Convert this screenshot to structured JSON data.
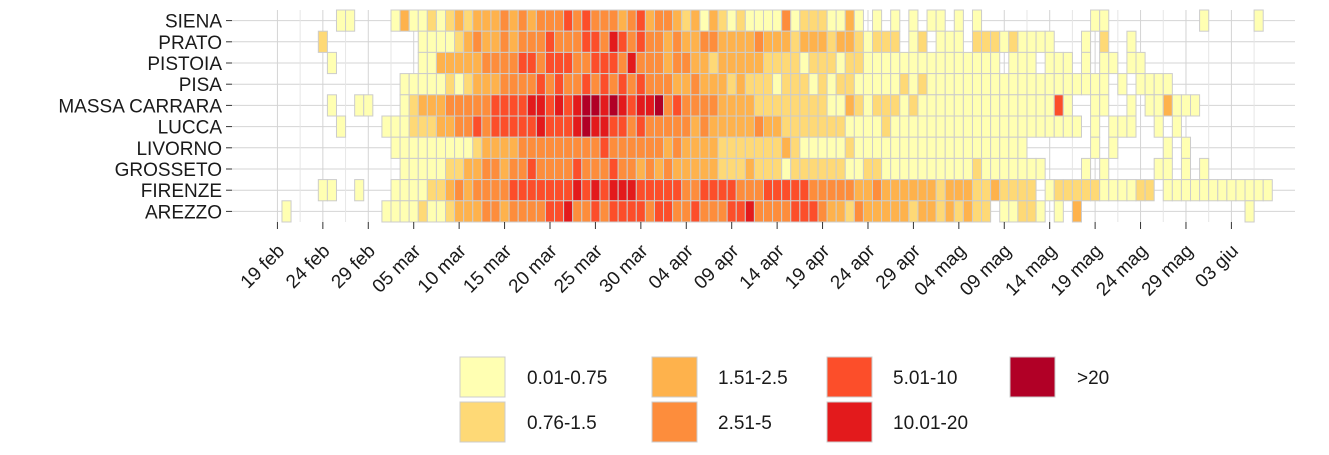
{
  "chart_data": {
    "type": "heatmap",
    "x": [
      6,
      7,
      8,
      9,
      10,
      11,
      12,
      13,
      14,
      15,
      16,
      17,
      18,
      19,
      20,
      21,
      22,
      23,
      24,
      25,
      26,
      27,
      28,
      29,
      30,
      31,
      32,
      33,
      34,
      35,
      36,
      37,
      38,
      39,
      40,
      41,
      42,
      43,
      44,
      45,
      46,
      47,
      48,
      49,
      50,
      51,
      52,
      53,
      54,
      55,
      56,
      57,
      58,
      59,
      60,
      61,
      62,
      63,
      64,
      65,
      66,
      67,
      68,
      69,
      70,
      71,
      72,
      73,
      74,
      75,
      76,
      77,
      78,
      79,
      80,
      81,
      82,
      83,
      84,
      85,
      86,
      87,
      88,
      89,
      90,
      91,
      92,
      93,
      94,
      95,
      96,
      97,
      98,
      99,
      100,
      101,
      102,
      103,
      104,
      105,
      106,
      107,
      108,
      109,
      110,
      111,
      112,
      113,
      114
    ],
    "xlim": [
      0,
      117
    ],
    "xticks": [
      {
        "value": 5,
        "label": "19 feb"
      },
      {
        "value": 10,
        "label": "24 feb"
      },
      {
        "value": 15,
        "label": "29 feb"
      },
      {
        "value": 20,
        "label": "05 mar"
      },
      {
        "value": 25,
        "label": "10 mar"
      },
      {
        "value": 30,
        "label": "15 mar"
      },
      {
        "value": 35,
        "label": "20 mar"
      },
      {
        "value": 40,
        "label": "25 mar"
      },
      {
        "value": 45,
        "label": "30 mar"
      },
      {
        "value": 50,
        "label": "04 apr"
      },
      {
        "value": 55,
        "label": "09 apr"
      },
      {
        "value": 60,
        "label": "14 apr"
      },
      {
        "value": 65,
        "label": "19 apr"
      },
      {
        "value": 70,
        "label": "24 apr"
      },
      {
        "value": 75,
        "label": "29 apr"
      },
      {
        "value": 80,
        "label": "04 mag"
      },
      {
        "value": 85,
        "label": "09 mag"
      },
      {
        "value": 90,
        "label": "14 mag"
      },
      {
        "value": 95,
        "label": "19 mag"
      },
      {
        "value": 100,
        "label": "24 mag"
      },
      {
        "value": 105,
        "label": "29 mag"
      },
      {
        "value": 110,
        "label": "03 giu"
      }
    ],
    "grid": true,
    "classes": [
      {
        "label": "0.01-0.75",
        "color": "#FFFFB2"
      },
      {
        "label": "0.76-1.5",
        "color": "#FED976"
      },
      {
        "label": "1.51-2.5",
        "color": "#FEB24C"
      },
      {
        "label": "2.51-5",
        "color": "#FD8D3C"
      },
      {
        "label": "5.01-10",
        "color": "#FC4E2A"
      },
      {
        "label": "10.01-20",
        "color": "#E31A1C"
      },
      {
        "label": ">20",
        "color": "#B10026"
      }
    ],
    "series": [
      {
        "name": "SIENA",
        "values": [
          null,
          null,
          null,
          null,
          null,
          null,
          0,
          0,
          null,
          null,
          null,
          null,
          0,
          2,
          0,
          0,
          1,
          0,
          1,
          2,
          1,
          2,
          2,
          2,
          3,
          2,
          3,
          2,
          3,
          3,
          3,
          4,
          3,
          4,
          3,
          3,
          3,
          2,
          3,
          4,
          2,
          3,
          3,
          2,
          1,
          2,
          0,
          2,
          1,
          0,
          1,
          0,
          0,
          0,
          0,
          3,
          0,
          1,
          1,
          1,
          0,
          0,
          2,
          0,
          null,
          0,
          null,
          0,
          null,
          0,
          null,
          0,
          0,
          null,
          0,
          null,
          0,
          null,
          null,
          null,
          null,
          null,
          null,
          null,
          null,
          null,
          null,
          null,
          null,
          0,
          0,
          null,
          null,
          null,
          null,
          null,
          null,
          null,
          null,
          null,
          null,
          0,
          null,
          null,
          null,
          null,
          null,
          0,
          null
        ]
      },
      {
        "name": "PRATO",
        "values": [
          null,
          null,
          null,
          null,
          1,
          null,
          null,
          null,
          null,
          null,
          null,
          null,
          null,
          null,
          null,
          0,
          0,
          0,
          0,
          1,
          2,
          3,
          2,
          2,
          3,
          2,
          3,
          3,
          3,
          4,
          3,
          3,
          3,
          4,
          4,
          3,
          5,
          4,
          3,
          4,
          3,
          3,
          2,
          3,
          2,
          2,
          3,
          3,
          2,
          2,
          2,
          2,
          3,
          2,
          2,
          2,
          1,
          2,
          2,
          2,
          1,
          2,
          2,
          1,
          0,
          1,
          1,
          1,
          null,
          0,
          1,
          null,
          0,
          0,
          0,
          null,
          1,
          1,
          1,
          0,
          1,
          0,
          0,
          0,
          0,
          null,
          null,
          null,
          0,
          null,
          1,
          null,
          null,
          0,
          null,
          null,
          null,
          null,
          null,
          null,
          null,
          null,
          null,
          null,
          null,
          null,
          null,
          null,
          null
        ]
      },
      {
        "name": "PISTOIA",
        "values": [
          null,
          null,
          null,
          null,
          null,
          0,
          null,
          null,
          null,
          null,
          null,
          null,
          null,
          null,
          null,
          0,
          0,
          2,
          2,
          2,
          2,
          2,
          3,
          3,
          3,
          3,
          4,
          4,
          3,
          4,
          4,
          4,
          3,
          3,
          4,
          4,
          4,
          3,
          5,
          3,
          3,
          3,
          2,
          3,
          3,
          2,
          2,
          1,
          2,
          2,
          2,
          2,
          2,
          1,
          1,
          1,
          1,
          0,
          1,
          1,
          1,
          0,
          1,
          1,
          0,
          0,
          0,
          0,
          0,
          0,
          0,
          0,
          0,
          0,
          0,
          0,
          0,
          0,
          0,
          null,
          0,
          0,
          0,
          null,
          0,
          0,
          0,
          null,
          0,
          null,
          0,
          0,
          null,
          0,
          0,
          null,
          null,
          null,
          null,
          null,
          null,
          null,
          null,
          null,
          null,
          null,
          null,
          null,
          null
        ]
      },
      {
        "name": "PISA",
        "values": [
          null,
          null,
          null,
          null,
          null,
          null,
          null,
          null,
          null,
          null,
          null,
          null,
          null,
          0,
          0,
          0,
          0,
          0,
          1,
          0,
          1,
          2,
          2,
          2,
          3,
          3,
          3,
          3,
          4,
          3,
          4,
          3,
          3,
          4,
          3,
          4,
          3,
          4,
          3,
          4,
          3,
          3,
          3,
          2,
          2,
          3,
          2,
          2,
          2,
          1,
          2,
          1,
          1,
          1,
          0,
          1,
          1,
          1,
          0,
          1,
          0,
          1,
          1,
          0,
          0,
          0,
          0,
          0,
          1,
          0,
          1,
          0,
          0,
          0,
          0,
          0,
          0,
          0,
          0,
          0,
          0,
          0,
          0,
          0,
          0,
          0,
          0,
          0,
          0,
          0,
          0,
          null,
          0,
          null,
          0,
          0,
          0,
          0,
          null,
          null,
          null,
          null,
          null,
          null,
          null,
          null,
          null,
          null,
          null
        ]
      },
      {
        "name": "MASSA CARRARA",
        "values": [
          null,
          null,
          null,
          null,
          null,
          0,
          null,
          null,
          0,
          0,
          null,
          null,
          null,
          0,
          1,
          2,
          2,
          2,
          3,
          3,
          3,
          3,
          3,
          4,
          4,
          4,
          4,
          5,
          5,
          4,
          5,
          4,
          5,
          6,
          6,
          5,
          6,
          5,
          4,
          5,
          5,
          6,
          3,
          4,
          3,
          3,
          3,
          3,
          2,
          2,
          2,
          2,
          1,
          1,
          1,
          1,
          1,
          1,
          1,
          1,
          0,
          0,
          2,
          1,
          0,
          1,
          1,
          1,
          0,
          1,
          0,
          0,
          0,
          0,
          0,
          0,
          0,
          0,
          0,
          0,
          0,
          0,
          0,
          0,
          0,
          4,
          0,
          null,
          null,
          0,
          0,
          null,
          null,
          0,
          null,
          0,
          0,
          2,
          0,
          0,
          0,
          null,
          null,
          null,
          null,
          null,
          null,
          null,
          null
        ]
      },
      {
        "name": "LUCCA",
        "values": [
          null,
          null,
          null,
          null,
          null,
          null,
          0,
          null,
          null,
          null,
          null,
          0,
          0,
          0,
          1,
          1,
          1,
          2,
          2,
          3,
          3,
          4,
          3,
          4,
          4,
          4,
          4,
          4,
          5,
          4,
          4,
          4,
          5,
          6,
          5,
          5,
          4,
          4,
          3,
          4,
          3,
          3,
          3,
          3,
          3,
          2,
          3,
          2,
          2,
          2,
          2,
          2,
          3,
          2,
          2,
          1,
          1,
          1,
          1,
          1,
          1,
          1,
          0,
          0,
          0,
          0,
          1,
          0,
          0,
          0,
          0,
          0,
          0,
          0,
          0,
          0,
          0,
          0,
          0,
          0,
          0,
          0,
          0,
          0,
          0,
          0,
          0,
          0,
          null,
          0,
          null,
          0,
          0,
          0,
          null,
          null,
          0,
          null,
          0,
          null,
          null,
          null,
          null,
          null,
          null,
          null,
          null,
          null,
          null
        ]
      },
      {
        "name": "LIVORNO",
        "values": [
          null,
          null,
          null,
          null,
          null,
          null,
          null,
          null,
          null,
          null,
          null,
          null,
          0,
          0,
          0,
          0,
          0,
          0,
          0,
          0,
          0,
          1,
          2,
          2,
          2,
          2,
          3,
          3,
          3,
          3,
          3,
          3,
          3,
          3,
          3,
          4,
          3,
          3,
          3,
          3,
          3,
          3,
          2,
          3,
          2,
          2,
          2,
          2,
          1,
          1,
          1,
          1,
          1,
          1,
          1,
          2,
          1,
          0,
          0,
          0,
          0,
          0,
          1,
          0,
          0,
          0,
          0,
          0,
          0,
          0,
          0,
          0,
          0,
          0,
          0,
          0,
          0,
          0,
          0,
          0,
          0,
          0,
          null,
          null,
          null,
          null,
          null,
          null,
          null,
          0,
          null,
          0,
          null,
          null,
          null,
          null,
          null,
          0,
          null,
          0,
          null,
          null,
          null,
          null,
          null,
          null,
          null,
          null,
          null
        ]
      },
      {
        "name": "GROSSETO",
        "values": [
          null,
          null,
          null,
          null,
          null,
          null,
          null,
          null,
          null,
          null,
          null,
          null,
          null,
          0,
          0,
          0,
          0,
          0,
          1,
          1,
          2,
          2,
          3,
          3,
          2,
          3,
          3,
          4,
          3,
          3,
          3,
          3,
          4,
          3,
          3,
          3,
          4,
          3,
          3,
          2,
          3,
          2,
          3,
          2,
          2,
          2,
          2,
          2,
          1,
          1,
          1,
          2,
          1,
          1,
          1,
          0,
          1,
          1,
          1,
          1,
          1,
          1,
          0,
          0,
          1,
          1,
          0,
          0,
          0,
          0,
          0,
          0,
          0,
          0,
          0,
          0,
          1,
          0,
          0,
          0,
          0,
          0,
          0,
          0,
          null,
          null,
          null,
          null,
          0,
          null,
          0,
          null,
          null,
          null,
          null,
          null,
          0,
          0,
          null,
          0,
          null,
          0,
          null,
          null,
          null,
          null,
          null,
          null,
          null
        ]
      },
      {
        "name": "FIRENZE",
        "values": [
          null,
          null,
          null,
          null,
          0,
          0,
          null,
          null,
          0,
          null,
          null,
          null,
          0,
          0,
          0,
          0,
          1,
          1,
          2,
          3,
          2,
          3,
          3,
          3,
          3,
          4,
          4,
          4,
          4,
          4,
          4,
          4,
          5,
          4,
          5,
          4,
          5,
          5,
          5,
          4,
          4,
          4,
          4,
          4,
          3,
          3,
          4,
          4,
          4,
          4,
          3,
          3,
          3,
          4,
          4,
          4,
          4,
          4,
          3,
          3,
          3,
          3,
          3,
          2,
          2,
          3,
          2,
          2,
          2,
          2,
          2,
          2,
          1,
          2,
          2,
          2,
          1,
          1,
          2,
          1,
          1,
          1,
          1,
          null,
          0,
          1,
          1,
          1,
          1,
          1,
          0,
          0,
          0,
          0,
          1,
          1,
          null,
          0,
          0,
          0,
          0,
          0,
          0,
          0,
          0,
          0,
          0,
          0,
          0
        ]
      },
      {
        "name": "AREZZO",
        "values": [
          0,
          null,
          null,
          null,
          null,
          null,
          null,
          null,
          null,
          null,
          null,
          0,
          0,
          0,
          0,
          1,
          0,
          0,
          1,
          2,
          2,
          2,
          3,
          3,
          2,
          3,
          3,
          3,
          3,
          4,
          4,
          5,
          3,
          3,
          4,
          3,
          4,
          4,
          4,
          4,
          3,
          4,
          4,
          3,
          3,
          4,
          3,
          3,
          3,
          4,
          4,
          5,
          3,
          3,
          3,
          3,
          4,
          4,
          4,
          3,
          2,
          2,
          1,
          3,
          2,
          2,
          2,
          2,
          2,
          1,
          2,
          2,
          1,
          2,
          1,
          2,
          1,
          1,
          null,
          0,
          0,
          1,
          1,
          0,
          null,
          0,
          null,
          2,
          null,
          null,
          null,
          null,
          null,
          null,
          null,
          null,
          null,
          null,
          null,
          null,
          null,
          null,
          null,
          null,
          null,
          null,
          0,
          null,
          null
        ]
      }
    ]
  }
}
